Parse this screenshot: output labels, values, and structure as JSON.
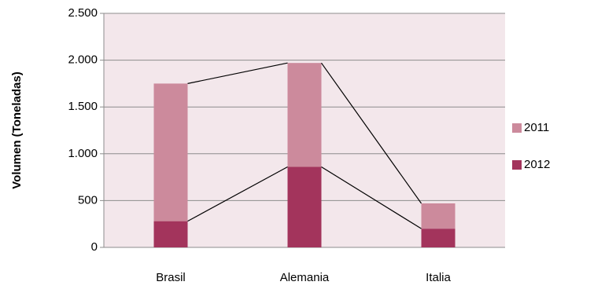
{
  "chart_data": {
    "type": "stacked_bar",
    "y_label": "Volumen (Toneladas)",
    "categories": [
      "Brasil",
      "Alemania",
      "Italia"
    ],
    "series": [
      {
        "name": "2011",
        "color": "#cc8a9c",
        "values": [
          1470,
          1110,
          270
        ]
      },
      {
        "name": "2012",
        "color": "#a3345c",
        "values": [
          280,
          860,
          200
        ]
      }
    ],
    "ylim": [
      0,
      2500
    ],
    "yticks": [
      0,
      500,
      {
        "value": 1000,
        "label": "1.000"
      },
      {
        "value": 1500,
        "label": "1.500"
      },
      {
        "value": 2000,
        "label": "2.000"
      },
      {
        "value": 2500,
        "label": "2.500"
      }
    ],
    "grid": true,
    "series_lines": true,
    "legend": "right"
  }
}
